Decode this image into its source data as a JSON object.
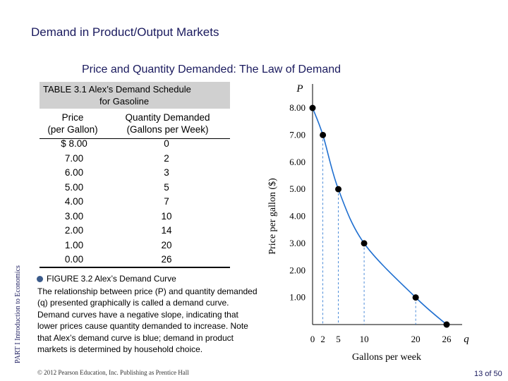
{
  "slide_title": "Demand in Product/Output Markets",
  "subtitle": "Price and Quantity Demanded: The Law of Demand",
  "side_label": "PART I Introduction to Economics",
  "table": {
    "title_line1": "TABLE 3.1   Alex’s Demand Schedule",
    "title_line2": "for Gasoline",
    "col_price_1": "Price",
    "col_price_2": "(per Gallon)",
    "col_qty_1": "Quantity Demanded",
    "col_qty_2": "(Gallons per Week)",
    "prices": [
      "$ 8.00",
      "7.00",
      "6.00",
      "5.00",
      "4.00",
      "3.00",
      "2.00",
      "1.00",
      "0.00"
    ],
    "quantities": [
      "0",
      "2",
      "3",
      "5",
      "7",
      "10",
      "14",
      "20",
      "26"
    ]
  },
  "figure": {
    "label": "FIGURE 3.2  Alex’s Demand Curve",
    "caption_1": "The relationship between price (P) and quantity demanded (q) presented graphically is called a demand curve.",
    "caption_2": "Demand curves have a negative slope, indicating that lower prices cause quantity demanded to increase. Note that Alex’s demand curve is blue; demand in product markets is determined by household choice."
  },
  "chart_data": {
    "type": "scatter",
    "points": [
      {
        "q": 0,
        "p": 8.0
      },
      {
        "q": 2,
        "p": 7.0
      },
      {
        "q": 5,
        "p": 5.0
      },
      {
        "q": 10,
        "p": 3.0
      },
      {
        "q": 20,
        "p": 1.0
      },
      {
        "q": 26,
        "p": 0.0
      }
    ],
    "y_axis_symbol": "P",
    "x_axis_symbol": "q",
    "ylabel": "Price per gallon ($)",
    "xlabel": "Gallons per week",
    "y_ticks": [
      "1.00",
      "2.00",
      "3.00",
      "4.00",
      "5.00",
      "6.00",
      "7.00",
      "8.00"
    ],
    "x_ticks": [
      "0",
      "2",
      "5",
      "10",
      "20",
      "26"
    ],
    "curve_color": "#1f6fd0",
    "point_color": "#000000",
    "grid": false
  },
  "footer": "© 2012 Pearson Education, Inc. Publishing as Prentice Hall",
  "page_number": "13 of 50"
}
